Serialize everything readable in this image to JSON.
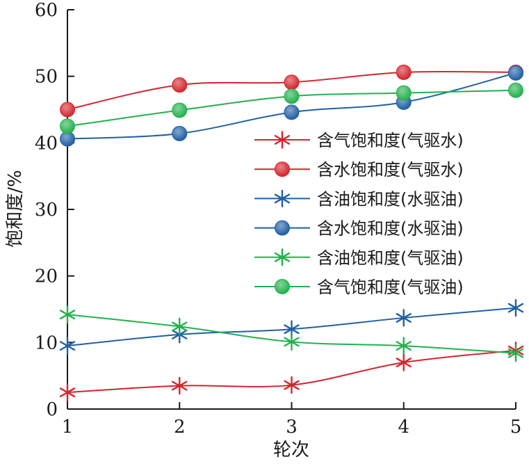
{
  "chart_data": {
    "type": "line",
    "title": "",
    "xlabel": "轮次",
    "ylabel": "饱和度/%",
    "x": [
      1,
      2,
      3,
      4,
      5
    ],
    "xlim": [
      1,
      5
    ],
    "ylim": [
      0,
      60
    ],
    "xticks": [
      "1",
      "2",
      "3",
      "4",
      "5"
    ],
    "yticks": [
      "0",
      "10",
      "20",
      "30",
      "40",
      "50",
      "60"
    ],
    "grid": false,
    "legend_position": "center-right",
    "series": [
      {
        "name": "含气饱和度(气驱水)",
        "marker": "asterisk",
        "color": "#d4242c",
        "values": [
          2.5,
          3.5,
          3.6,
          7.0,
          8.8
        ]
      },
      {
        "name": "含水饱和度(气驱水)",
        "marker": "circle",
        "color": "#d4242c",
        "values": [
          45.0,
          48.7,
          49.1,
          50.6,
          50.6
        ]
      },
      {
        "name": "含油饱和度(水驱油)",
        "marker": "asterisk",
        "color": "#1f5fa6",
        "values": [
          9.5,
          11.2,
          12.0,
          13.7,
          15.2
        ]
      },
      {
        "name": "含水饱和度(水驱油)",
        "marker": "circle",
        "color": "#1f5fa6",
        "values": [
          40.6,
          41.4,
          44.6,
          46.1,
          50.5
        ]
      },
      {
        "name": "含油饱和度(气驱油)",
        "marker": "asterisk",
        "color": "#22b14c",
        "values": [
          14.2,
          12.4,
          10.1,
          9.5,
          8.4
        ]
      },
      {
        "name": "含气饱和度(气驱油)",
        "marker": "circle",
        "color": "#22b14c",
        "values": [
          42.5,
          44.9,
          47.0,
          47.5,
          47.9
        ]
      }
    ]
  }
}
